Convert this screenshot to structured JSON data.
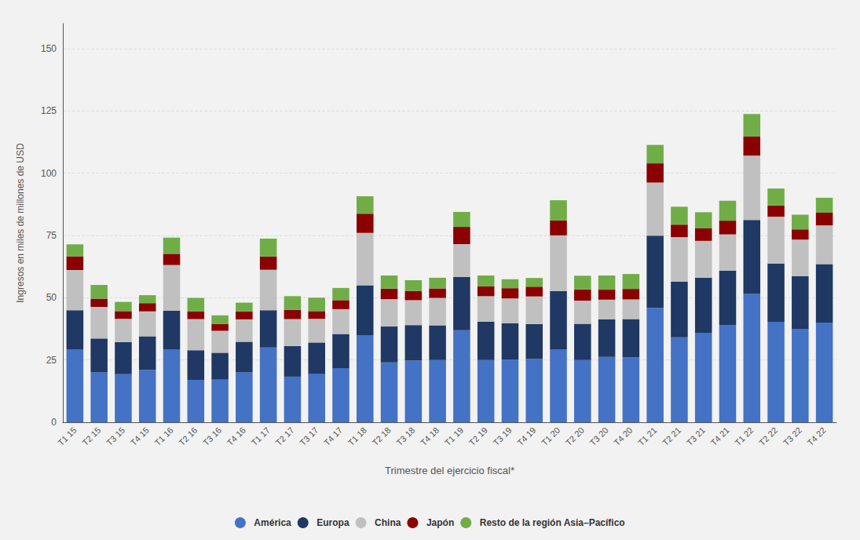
{
  "chart_data": {
    "type": "bar",
    "stacked": true,
    "xlabel": "Trimestre del ejercicio fiscal*",
    "ylabel": "Ingresos en miles de millones de USD",
    "categories": [
      "T1 15",
      "T2 15",
      "T3 15",
      "T4 15",
      "T1 16",
      "T2 16",
      "T3 16",
      "T4 16",
      "T1 17",
      "T2 17",
      "T3 17",
      "T4 17",
      "T1 18",
      "T2 18",
      "T3 18",
      "T4 18",
      "T1 19",
      "T2 19",
      "T3 19",
      "T4 19",
      "T1 20",
      "T2 20",
      "T3 20",
      "T4 20",
      "T1 21",
      "T2 21",
      "T3 21",
      "T4 21",
      "T1 22",
      "T2 22",
      "T3 22",
      "T4 22"
    ],
    "series": [
      {
        "name": "América",
        "color": "#4472c4",
        "values": [
          29.3,
          20.0,
          19.3,
          21.0,
          29.3,
          17.0,
          17.1,
          20.0,
          30.0,
          18.3,
          19.5,
          21.7,
          35.0,
          24.0,
          24.8,
          25.0,
          36.9,
          25.0,
          25.1,
          25.4,
          29.3,
          25.0,
          26.2,
          26.1,
          45.9,
          34.1,
          35.9,
          38.9,
          51.5,
          40.3,
          37.5,
          40.0
        ]
      },
      {
        "name": "Europa",
        "color": "#1f3864",
        "values": [
          15.7,
          13.6,
          12.9,
          13.5,
          15.4,
          11.9,
          10.8,
          12.3,
          15.0,
          12.3,
          12.5,
          13.7,
          20.0,
          14.4,
          14.2,
          13.9,
          21.4,
          15.4,
          14.6,
          14.0,
          23.3,
          14.5,
          15.1,
          15.3,
          29.0,
          22.3,
          22.1,
          22.0,
          29.7,
          23.3,
          21.2,
          23.5
        ]
      },
      {
        "name": "China",
        "color": "#c0c0c0",
        "values": [
          16.1,
          12.7,
          9.3,
          10.0,
          18.4,
          12.5,
          8.8,
          9.0,
          16.2,
          10.8,
          9.5,
          10.0,
          21.0,
          11.0,
          10.0,
          11.0,
          13.2,
          10.2,
          10.0,
          11.1,
          22.4,
          9.3,
          7.9,
          7.9,
          21.3,
          17.9,
          14.8,
          14.5,
          25.8,
          18.9,
          14.6,
          15.5
        ]
      },
      {
        "name": "Japón",
        "color": "#8b0000",
        "values": [
          5.5,
          3.3,
          3.1,
          3.3,
          4.5,
          3.0,
          2.7,
          3.2,
          5.3,
          3.7,
          3.1,
          3.6,
          7.7,
          4.2,
          3.7,
          3.8,
          6.9,
          3.9,
          4.1,
          3.9,
          6.0,
          4.5,
          4.0,
          4.2,
          7.7,
          5.0,
          5.0,
          5.5,
          7.7,
          4.5,
          4.1,
          5.1
        ]
      },
      {
        "name": "Resto de la región Asia–Pacífico",
        "color": "#70ad47",
        "values": [
          4.8,
          5.5,
          3.7,
          3.2,
          6.5,
          5.5,
          3.5,
          3.5,
          7.2,
          5.5,
          5.4,
          4.9,
          7.0,
          5.3,
          4.3,
          4.3,
          6.0,
          4.4,
          3.6,
          3.5,
          8.1,
          5.5,
          5.7,
          6.0,
          7.4,
          7.2,
          6.5,
          8.0,
          9.0,
          6.8,
          5.9,
          6.0
        ]
      }
    ],
    "ylim": [
      0,
      160
    ],
    "yticks": [
      0,
      25,
      50,
      75,
      100,
      125,
      150
    ],
    "grid": true,
    "legend": "bottom"
  }
}
